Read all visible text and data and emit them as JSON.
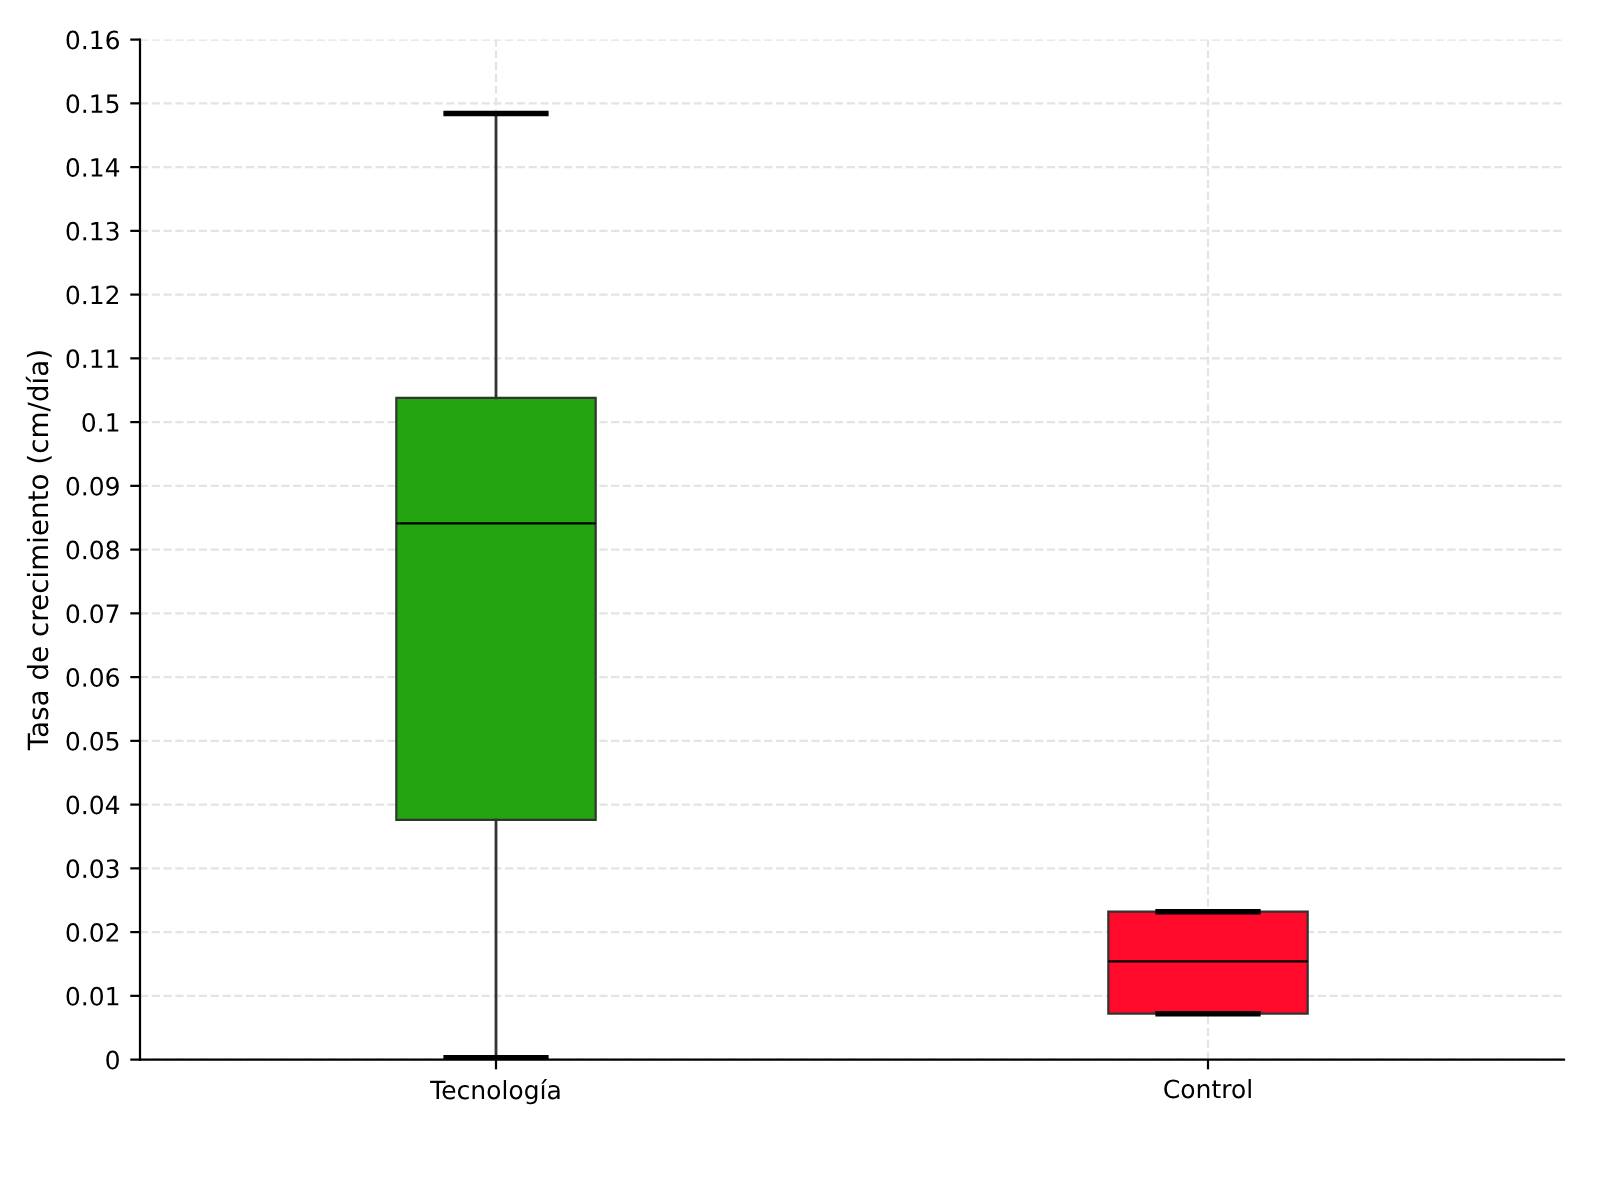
{
  "chart_data": {
    "type": "box",
    "ylabel": "Tasa de crecimiento (cm/día)",
    "categories": [
      "Tecnología",
      "Control"
    ],
    "colors": [
      "#22a50e",
      "#ff0a2a"
    ],
    "boxes": [
      {
        "low": 0.0003,
        "q1": 0.0376,
        "median": 0.0841,
        "q3": 0.1038,
        "high": 0.1484
      },
      {
        "low": 0.0072,
        "q1": 0.0072,
        "median": 0.0154,
        "q3": 0.0232,
        "high": 0.0232
      }
    ],
    "ylim": [
      0,
      0.16
    ],
    "yticks": [
      0,
      0.01,
      0.02,
      0.03,
      0.04,
      0.05,
      0.06,
      0.07,
      0.08,
      0.09,
      {
        "value": 0.1,
        "label": "0.1"
      },
      0.11,
      0.12,
      0.13,
      0.14,
      0.15,
      0.16
    ],
    "grid": true
  }
}
